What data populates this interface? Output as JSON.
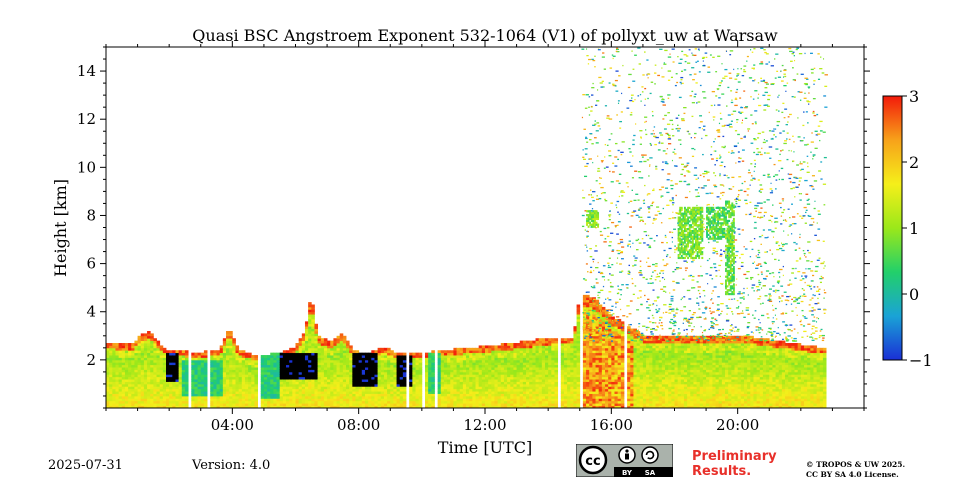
{
  "chart_data": {
    "type": "heatmap",
    "title": "Quasi BSC Angstroem Exponent 532-1064 (V1) of pollyxt_uw at Warsaw",
    "xlabel": "Time [UTC]",
    "ylabel": "Height [km]",
    "x_unit": "hours UTC",
    "xlim": [
      0,
      24
    ],
    "ylim": [
      0,
      15
    ],
    "x_ticks": [
      {
        "value": 4,
        "label": "04:00"
      },
      {
        "value": 8,
        "label": "08:00"
      },
      {
        "value": 12,
        "label": "12:00"
      },
      {
        "value": 16,
        "label": "16:00"
      },
      {
        "value": 20,
        "label": "20:00"
      }
    ],
    "y_ticks": [
      {
        "value": 2,
        "label": "2"
      },
      {
        "value": 4,
        "label": "4"
      },
      {
        "value": 6,
        "label": "6"
      },
      {
        "value": 8,
        "label": "8"
      },
      {
        "value": 10,
        "label": "10"
      },
      {
        "value": 12,
        "label": "12"
      },
      {
        "value": 14,
        "label": "14"
      }
    ],
    "colorbar": {
      "range": [
        -1,
        3
      ],
      "ticks": [
        {
          "value": 3,
          "label": "3"
        },
        {
          "value": 2,
          "label": "2"
        },
        {
          "value": 1,
          "label": "1"
        },
        {
          "value": 0,
          "label": "0"
        },
        {
          "value": -1,
          "label": "−1"
        }
      ],
      "colors": [
        "#1a2fd6",
        "#1aa3d6",
        "#22d06a",
        "#9be81a",
        "#f5ef1a",
        "#f7a21a",
        "#f31a0a"
      ]
    },
    "layer_top_km": [
      [
        0,
        2.7
      ],
      [
        0.8,
        2.6
      ],
      [
        1.1,
        3.0
      ],
      [
        1.4,
        3.2
      ],
      [
        1.6,
        2.8
      ],
      [
        1.9,
        2.4
      ],
      [
        2.2,
        2.4
      ],
      [
        2.6,
        2.3
      ],
      [
        3.1,
        2.3
      ],
      [
        3.6,
        2.4
      ],
      [
        3.9,
        3.3
      ],
      [
        4.2,
        2.4
      ],
      [
        4.8,
        2.1
      ],
      [
        5.6,
        2.3
      ],
      [
        6.0,
        2.5
      ],
      [
        6.3,
        3.2
      ],
      [
        6.5,
        4.7
      ],
      [
        6.7,
        3.0
      ],
      [
        7.1,
        2.7
      ],
      [
        7.5,
        3.1
      ],
      [
        7.8,
        2.4
      ],
      [
        8.2,
        2.2
      ],
      [
        8.8,
        2.5
      ],
      [
        9.3,
        2.2
      ],
      [
        10.3,
        2.3
      ],
      [
        11.0,
        2.4
      ],
      [
        12.5,
        2.6
      ],
      [
        13.6,
        2.8
      ],
      [
        14.2,
        2.9
      ],
      [
        14.8,
        2.9
      ],
      [
        15.0,
        4.7
      ],
      [
        15.5,
        4.5
      ],
      [
        16.0,
        3.8
      ],
      [
        17.0,
        3.0
      ],
      [
        18.5,
        2.9
      ],
      [
        20.0,
        3.0
      ],
      [
        21.5,
        2.7
      ],
      [
        22.5,
        2.5
      ]
    ],
    "data_end_hour": 22.75,
    "dropouts_hours": [
      [
        2.6,
        2.68
      ],
      [
        3.25,
        3.35
      ],
      [
        4.75,
        4.85
      ],
      [
        9.5,
        9.55
      ],
      [
        10.0,
        10.05
      ],
      [
        10.35,
        10.45
      ],
      [
        14.3,
        14.36
      ],
      [
        14.55,
        14.6
      ],
      [
        15.0,
        15.05
      ],
      [
        16.35,
        16.45
      ]
    ],
    "low_value_patches": [
      {
        "from_hour": 1.9,
        "to_hour": 2.3,
        "top_km": 2.3,
        "bottom_km": 1.0,
        "value": -1.5
      },
      {
        "from_hour": 5.3,
        "to_hour": 6.6,
        "top_km": 2.3,
        "bottom_km": 1.1,
        "value": -1.5
      },
      {
        "from_hour": 7.7,
        "to_hour": 8.5,
        "top_km": 2.3,
        "bottom_km": 0.8,
        "value": -1.5
      },
      {
        "from_hour": 9.1,
        "to_hour": 9.6,
        "top_km": 2.2,
        "bottom_km": 0.8,
        "value": -1.5
      },
      {
        "from_hour": 2.4,
        "to_hour": 3.7,
        "top_km": 2.0,
        "bottom_km": 0.5,
        "value": 0.0
      },
      {
        "from_hour": 4.8,
        "to_hour": 5.4,
        "top_km": 2.3,
        "bottom_km": 0.4,
        "value": 0.0
      },
      {
        "from_hour": 10.1,
        "to_hour": 10.5,
        "top_km": 2.3,
        "bottom_km": 0.6,
        "value": 0.0
      }
    ],
    "aerosol_features": [
      {
        "from_hour": 18.1,
        "to_hour": 18.9,
        "bottom_km": 6.2,
        "top_km": 8.3,
        "value": 0.8
      },
      {
        "from_hour": 19.0,
        "to_hour": 19.6,
        "bottom_km": 7.0,
        "top_km": 8.3,
        "value": 0.6
      },
      {
        "from_hour": 19.6,
        "to_hour": 19.9,
        "bottom_km": 4.7,
        "top_km": 8.6,
        "value": 0.7
      },
      {
        "from_hour": 15.2,
        "to_hour": 15.6,
        "bottom_km": 7.5,
        "top_km": 8.2,
        "value": 0.9
      }
    ],
    "scattered_signal": {
      "from_hour": 15.0,
      "to_hour": 22.75,
      "bottom_km": 2.8,
      "top_km": 15.0
    }
  },
  "footer": {
    "date": "2025-07-31",
    "version": "Version: 4.0",
    "preliminary_line1": "Preliminary",
    "preliminary_line2": "Results.",
    "copyright_line1": "© TROPOS & UW 2025.",
    "copyright_line2": "CC BY SA 4.0 License.",
    "license_badge": {
      "icon": "cc-by-sa-icon",
      "by_label": "BY",
      "sa_label": "SA"
    }
  }
}
